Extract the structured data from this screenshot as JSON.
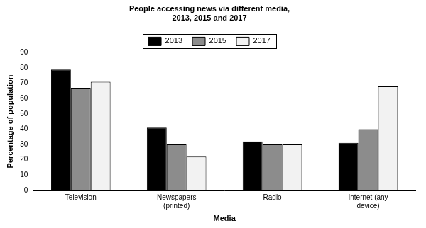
{
  "chart_data": {
    "type": "bar",
    "title": [
      "People accessing news via different media,",
      "2013, 2015 and 2017"
    ],
    "x_label": "Media",
    "y_label": "Percentage of population",
    "categories": [
      "Television",
      [
        "Newspapers",
        "(printed)"
      ],
      "Radio",
      [
        "Internet (any",
        "device)"
      ]
    ],
    "series": [
      {
        "name": "2013",
        "color": "#000000",
        "values": [
          79,
          41,
          32,
          31
        ]
      },
      {
        "name": "2015",
        "color": "#8c8c8c",
        "values": [
          67,
          30,
          30,
          40
        ]
      },
      {
        "name": "2017",
        "color": "#f2f2f2",
        "values": [
          71,
          22,
          30,
          68
        ]
      }
    ],
    "ylim": [
      0,
      90
    ],
    "yticks": [
      0,
      10,
      20,
      30,
      40,
      50,
      60,
      70,
      80,
      90
    ],
    "grid": false,
    "legend": "top"
  }
}
